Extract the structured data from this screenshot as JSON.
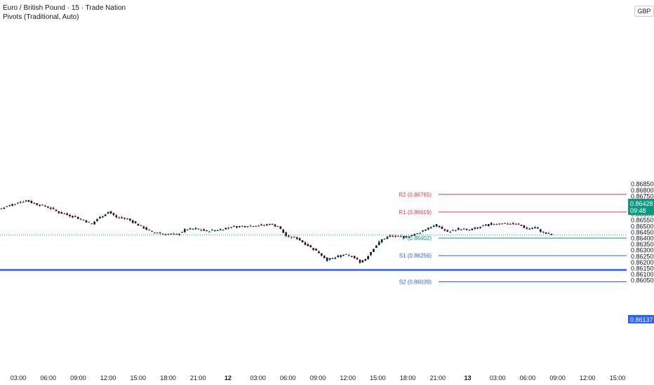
{
  "header": {
    "title": "Euro / British Pound · 15 · Trade Nation",
    "indicator": "Pivots (Traditional, Auto)"
  },
  "currency": "GBP",
  "current_price": {
    "value": "0.86428",
    "countdown": "09:48"
  },
  "horizontal_level": {
    "value": "0.86137"
  },
  "colors": {
    "up": "#089981",
    "down": "#f23645",
    "candle_body": "#131722",
    "r_levels": "#f23645",
    "pivot": "#089981",
    "s_levels": "#2962ff",
    "level_line": "#2962ff",
    "grid_text": "#131722"
  },
  "chart_data": {
    "type": "candlestick",
    "symbol": "EURGBP",
    "interval": "15",
    "y_range": [
      0.8601,
      0.8692
    ],
    "y_ticks": [
      "0.86850",
      "0.86800",
      "0.86750",
      "0.86700",
      "0.86650",
      "0.86600",
      "0.86550",
      "0.86500",
      "0.86450",
      "0.86400",
      "0.86350",
      "0.86300",
      "0.86250",
      "0.86200",
      "0.86150",
      "0.86100",
      "0.86050"
    ],
    "x_ticks": [
      {
        "label": "03:00",
        "bold": false
      },
      {
        "label": "06:00",
        "bold": false
      },
      {
        "label": "09:00",
        "bold": false
      },
      {
        "label": "12:00",
        "bold": false
      },
      {
        "label": "15:00",
        "bold": false
      },
      {
        "label": "18:00",
        "bold": false
      },
      {
        "label": "21:00",
        "bold": false
      },
      {
        "label": "12",
        "bold": true
      },
      {
        "label": "03:00",
        "bold": false
      },
      {
        "label": "06:00",
        "bold": false
      },
      {
        "label": "09:00",
        "bold": false
      },
      {
        "label": "12:00",
        "bold": false
      },
      {
        "label": "15:00",
        "bold": false
      },
      {
        "label": "18:00",
        "bold": false
      },
      {
        "label": "21:00",
        "bold": false
      },
      {
        "label": "13",
        "bold": true
      },
      {
        "label": "03:00",
        "bold": false
      },
      {
        "label": "06:00",
        "bold": false
      },
      {
        "label": "09:00",
        "bold": false
      },
      {
        "label": "12:00",
        "bold": false
      },
      {
        "label": "15:00",
        "bold": false
      }
    ],
    "pivots": [
      {
        "label": "R2 (0.86765)",
        "value": 0.86765,
        "kind": "r"
      },
      {
        "label": "R1 (0.86619)",
        "value": 0.86619,
        "kind": "r"
      },
      {
        "label": "P (0.86402)",
        "value": 0.86402,
        "kind": "p"
      },
      {
        "label": "S1 (0.86256)",
        "value": 0.86256,
        "kind": "s"
      },
      {
        "label": "S2 (0.86039)",
        "value": 0.86039,
        "kind": "s"
      }
    ],
    "last_price": 0.86428,
    "level": 0.86137,
    "close_path": [
      {
        "i": 0,
        "v": 0.86648
      },
      {
        "i": 6,
        "v": 0.867
      },
      {
        "i": 9,
        "v": 0.86714
      },
      {
        "i": 12,
        "v": 0.8669
      },
      {
        "i": 17,
        "v": 0.8666
      },
      {
        "i": 21,
        "v": 0.86615
      },
      {
        "i": 25,
        "v": 0.8659
      },
      {
        "i": 29,
        "v": 0.8656
      },
      {
        "i": 33,
        "v": 0.8652
      },
      {
        "i": 35,
        "v": 0.8656
      },
      {
        "i": 39,
        "v": 0.8662
      },
      {
        "i": 42,
        "v": 0.86575
      },
      {
        "i": 46,
        "v": 0.8656
      },
      {
        "i": 51,
        "v": 0.865
      },
      {
        "i": 55,
        "v": 0.8645
      },
      {
        "i": 59,
        "v": 0.8644
      },
      {
        "i": 64,
        "v": 0.8643
      },
      {
        "i": 67,
        "v": 0.8647
      },
      {
        "i": 71,
        "v": 0.8648
      },
      {
        "i": 75,
        "v": 0.8646
      },
      {
        "i": 80,
        "v": 0.86475
      },
      {
        "i": 84,
        "v": 0.86495
      },
      {
        "i": 88,
        "v": 0.865
      },
      {
        "i": 92,
        "v": 0.86505
      },
      {
        "i": 96,
        "v": 0.8651
      },
      {
        "i": 98,
        "v": 0.8652
      },
      {
        "i": 101,
        "v": 0.865
      },
      {
        "i": 104,
        "v": 0.8642
      },
      {
        "i": 108,
        "v": 0.864
      },
      {
        "i": 112,
        "v": 0.8634
      },
      {
        "i": 116,
        "v": 0.8628
      },
      {
        "i": 119,
        "v": 0.8622
      },
      {
        "i": 122,
        "v": 0.8624
      },
      {
        "i": 125,
        "v": 0.86265
      },
      {
        "i": 128,
        "v": 0.8625
      },
      {
        "i": 131,
        "v": 0.86205
      },
      {
        "i": 133,
        "v": 0.8623
      },
      {
        "i": 136,
        "v": 0.8632
      },
      {
        "i": 139,
        "v": 0.8639
      },
      {
        "i": 142,
        "v": 0.8642
      },
      {
        "i": 146,
        "v": 0.8641
      },
      {
        "i": 149,
        "v": 0.8642
      },
      {
        "i": 152,
        "v": 0.8644
      },
      {
        "i": 156,
        "v": 0.8649
      },
      {
        "i": 159,
        "v": 0.8651
      },
      {
        "i": 163,
        "v": 0.8645
      },
      {
        "i": 167,
        "v": 0.8648
      },
      {
        "i": 171,
        "v": 0.8647
      },
      {
        "i": 175,
        "v": 0.86495
      },
      {
        "i": 179,
        "v": 0.8652
      },
      {
        "i": 184,
        "v": 0.86525
      },
      {
        "i": 189,
        "v": 0.86515
      },
      {
        "i": 192,
        "v": 0.8648
      },
      {
        "i": 195,
        "v": 0.8649
      },
      {
        "i": 198,
        "v": 0.86445
      },
      {
        "i": 201,
        "v": 0.86428
      }
    ]
  }
}
